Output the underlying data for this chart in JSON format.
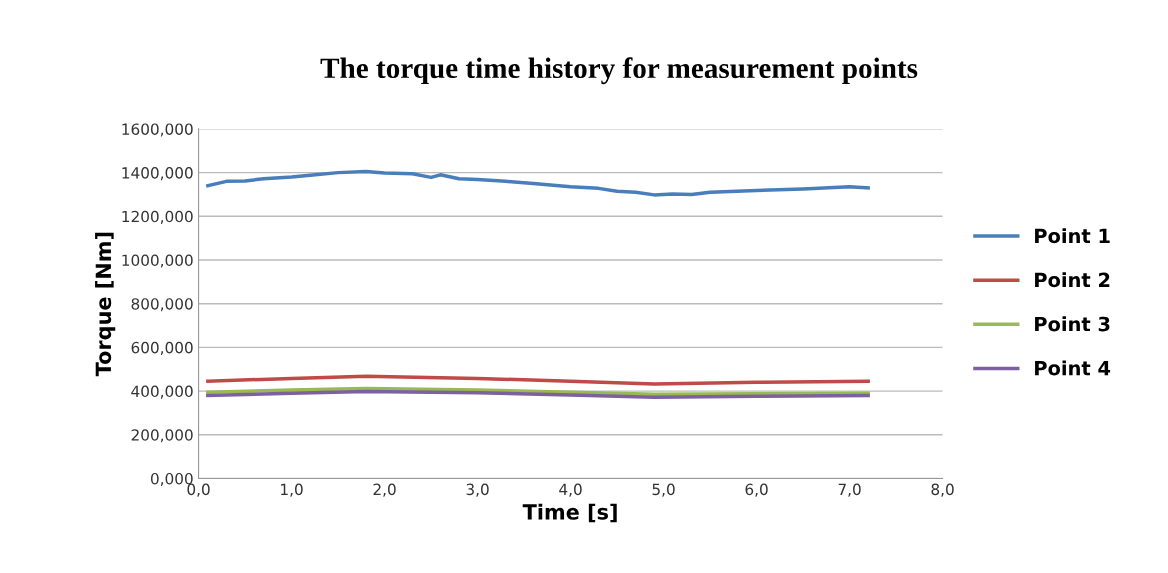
{
  "chart_data": {
    "type": "line",
    "title": "The torque time history for measurement points",
    "xlabel": "Time [s]",
    "ylabel": "Torque [Nm]",
    "xlim": [
      0,
      8
    ],
    "xticks": [
      {
        "value": 0,
        "label": "0,0"
      },
      {
        "value": 1,
        "label": "1,0"
      },
      {
        "value": 2,
        "label": "2,0"
      },
      {
        "value": 3,
        "label": "3,0"
      },
      {
        "value": 4,
        "label": "4,0"
      },
      {
        "value": 5,
        "label": "5,0"
      },
      {
        "value": 6,
        "label": "6,0"
      },
      {
        "value": 7,
        "label": "7,0"
      },
      {
        "value": 8,
        "label": "8,0"
      }
    ],
    "ylim": [
      0,
      1600
    ],
    "yticks": [
      {
        "value": 0,
        "label": "0,000"
      },
      {
        "value": 200,
        "label": "200,000"
      },
      {
        "value": 400,
        "label": "400,000"
      },
      {
        "value": 600,
        "label": "600,000"
      },
      {
        "value": 800,
        "label": "800,000"
      },
      {
        "value": 1000,
        "label": "1000,000"
      },
      {
        "value": 1200,
        "label": "1200,000"
      },
      {
        "value": 1400,
        "label": "1400,000"
      },
      {
        "value": 1600,
        "label": "1600,000"
      }
    ],
    "grid": "y",
    "legend": "right",
    "marker": "none",
    "line_style": "solid",
    "series": [
      {
        "name": "Point 1",
        "color": "#4a7ebb",
        "x": [
          0.1,
          0.3,
          0.5,
          0.7,
          1.0,
          1.2,
          1.5,
          1.8,
          2.0,
          2.3,
          2.5,
          2.6,
          2.8,
          3.0,
          3.3,
          3.6,
          4.0,
          4.3,
          4.5,
          4.7,
          4.9,
          5.1,
          5.3,
          5.5,
          6.0,
          6.5,
          7.0,
          7.2
        ],
        "values": [
          1340,
          1360,
          1362,
          1372,
          1380,
          1388,
          1400,
          1405,
          1398,
          1395,
          1378,
          1390,
          1372,
          1368,
          1360,
          1350,
          1335,
          1328,
          1315,
          1310,
          1298,
          1302,
          1300,
          1310,
          1318,
          1325,
          1335,
          1330
        ]
      },
      {
        "name": "Point 2",
        "color": "#be4b48",
        "x": [
          0.1,
          1.0,
          1.8,
          3.0,
          4.0,
          4.9,
          6.0,
          7.2
        ],
        "values": [
          445,
          458,
          468,
          458,
          445,
          432,
          440,
          445
        ]
      },
      {
        "name": "Point 3",
        "color": "#98b954",
        "x": [
          0.1,
          1.0,
          1.8,
          3.0,
          4.0,
          4.9,
          6.0,
          7.2
        ],
        "values": [
          395,
          405,
          412,
          405,
          395,
          385,
          388,
          390
        ]
      },
      {
        "name": "Point 4",
        "color": "#7d60a0",
        "x": [
          0.1,
          1.0,
          1.8,
          3.0,
          4.0,
          4.9,
          6.0,
          7.2
        ],
        "values": [
          380,
          390,
          398,
          392,
          382,
          372,
          376,
          380
        ]
      }
    ]
  }
}
